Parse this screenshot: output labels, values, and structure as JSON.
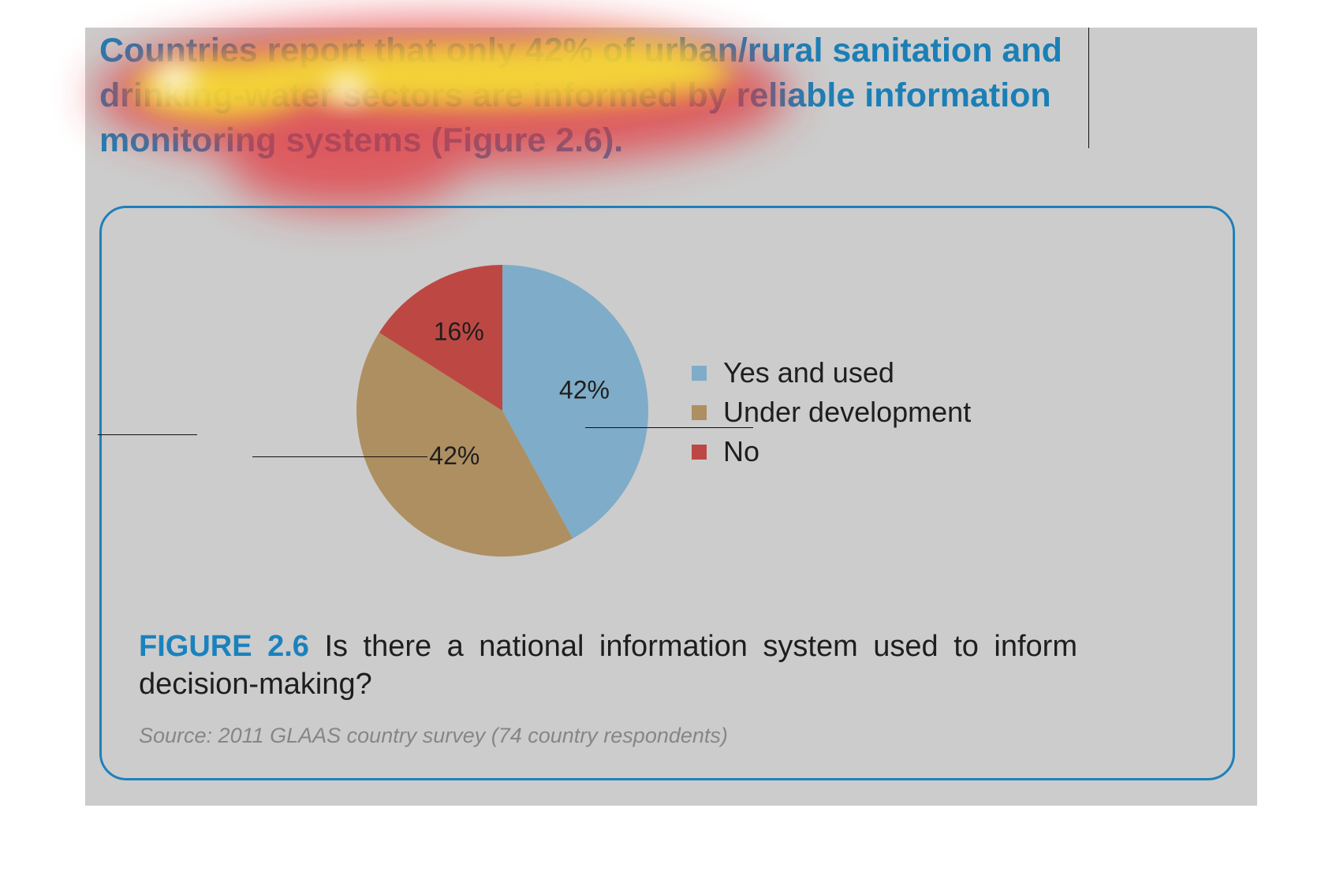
{
  "headline": "Countries report that only 42% of urban/rural sanitation and drinking-water sectors are informed by reliable information monitoring systems (Figure 2.6).",
  "colors": {
    "panel_bg": "#cccccc",
    "accent_blue": "#1b7fb6",
    "slice_yes": "#7facc8",
    "slice_under": "#ae8f61",
    "slice_no": "#bd4843",
    "box_border": "#1f80bb"
  },
  "chart_data": {
    "type": "pie",
    "categories": [
      "Yes and used",
      "Under development",
      "No"
    ],
    "values": [
      42,
      42,
      16
    ],
    "value_labels": [
      "42%",
      "42%",
      "16%"
    ],
    "colors": [
      "#7facc8",
      "#ae8f61",
      "#bd4843"
    ],
    "legend_position": "right",
    "start": "12 o'clock, clockwise"
  },
  "legend": {
    "items": [
      {
        "label": "Yes and used",
        "color": "#7facc8"
      },
      {
        "label": "Under development",
        "color": "#ae8f61"
      },
      {
        "label": "No",
        "color": "#bd4843"
      }
    ]
  },
  "caption": {
    "label": "FIGURE 2.6",
    "text": "Is there a national information system used to inform decision-making?"
  },
  "source": "Source: 2011 GLAAS country survey (74 country respondents)"
}
